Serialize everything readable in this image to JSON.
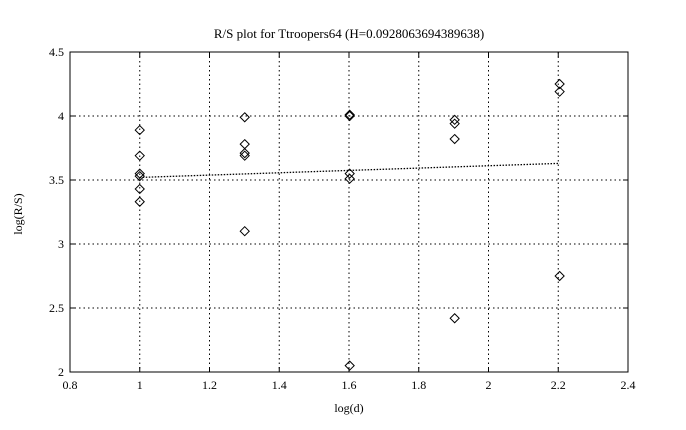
{
  "chart_data": {
    "type": "scatter",
    "title": "R/S plot for Ttroopers64 (H=0.0928063694389638)",
    "xlabel": "log(d)",
    "ylabel": "log(R/S)",
    "xlim": [
      0.8,
      2.4
    ],
    "ylim": [
      2,
      4.5
    ],
    "xticks": [
      "0.8",
      "1",
      "1.2",
      "1.4",
      "1.6",
      "1.8",
      "2",
      "2.2",
      "2.4"
    ],
    "yticks": [
      "2",
      "2.5",
      "3",
      "3.5",
      "4",
      "4.5"
    ],
    "grid": true,
    "marker": "diamond",
    "points": [
      {
        "x": 1.0,
        "y": 3.89
      },
      {
        "x": 1.0,
        "y": 3.69
      },
      {
        "x": 1.0,
        "y": 3.55
      },
      {
        "x": 1.0,
        "y": 3.53
      },
      {
        "x": 1.0,
        "y": 3.43
      },
      {
        "x": 1.0,
        "y": 3.33
      },
      {
        "x": 1.301,
        "y": 3.99
      },
      {
        "x": 1.301,
        "y": 3.78
      },
      {
        "x": 1.301,
        "y": 3.71
      },
      {
        "x": 1.301,
        "y": 3.69
      },
      {
        "x": 1.301,
        "y": 3.1
      },
      {
        "x": 1.602,
        "y": 4.01
      },
      {
        "x": 1.602,
        "y": 4.0
      },
      {
        "x": 1.602,
        "y": 3.55
      },
      {
        "x": 1.602,
        "y": 3.51
      },
      {
        "x": 1.602,
        "y": 2.05
      },
      {
        "x": 1.903,
        "y": 3.97
      },
      {
        "x": 1.903,
        "y": 3.94
      },
      {
        "x": 1.903,
        "y": 3.82
      },
      {
        "x": 1.903,
        "y": 2.42
      },
      {
        "x": 2.204,
        "y": 4.25
      },
      {
        "x": 2.204,
        "y": 4.19
      },
      {
        "x": 2.204,
        "y": 2.75
      }
    ],
    "fit_line": {
      "x": [
        1.0,
        2.204
      ],
      "y": [
        3.52,
        3.63
      ],
      "style": "dotted"
    }
  }
}
